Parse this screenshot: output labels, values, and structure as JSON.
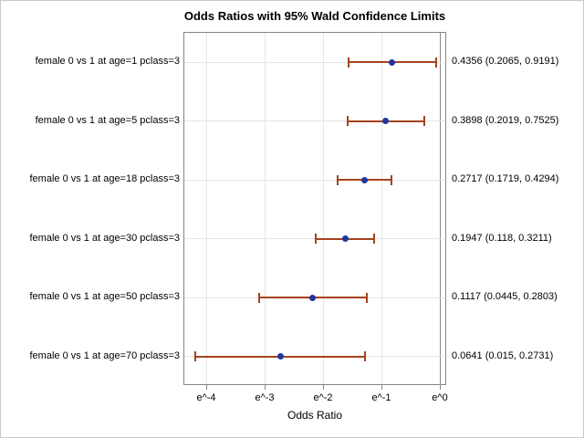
{
  "title": "Odds Ratios with 95% Wald Confidence Limits",
  "chart_data": {
    "type": "scatter",
    "subtype": "forest-plot-dot-with-error-bars",
    "title": "Odds Ratios with 95% Wald Confidence Limits",
    "xlabel": "Odds Ratio",
    "x_scale": "log-e",
    "xlim_exponent": [
      -4.39,
      0.11
    ],
    "grid": true,
    "x_ticks": [
      {
        "label": "e^-4",
        "exponent": -4
      },
      {
        "label": "e^-3",
        "exponent": -3
      },
      {
        "label": "e^-2",
        "exponent": -2
      },
      {
        "label": "e^-1",
        "exponent": -1
      },
      {
        "label": "e^0",
        "exponent": 0
      }
    ],
    "rows": [
      {
        "label": "female 0 vs 1 at age=1 pclass=3",
        "odds_ratio": 0.4356,
        "lower": 0.2065,
        "upper": 0.9191,
        "value_text": "0.4356 (0.2065, 0.9191)"
      },
      {
        "label": "female 0 vs 1 at age=5 pclass=3",
        "odds_ratio": 0.3898,
        "lower": 0.2019,
        "upper": 0.7525,
        "value_text": "0.3898 (0.2019, 0.7525)"
      },
      {
        "label": "female 0 vs 1 at age=18 pclass=3",
        "odds_ratio": 0.2717,
        "lower": 0.1719,
        "upper": 0.4294,
        "value_text": "0.2717 (0.1719, 0.4294)"
      },
      {
        "label": "female 0 vs 1 at age=30 pclass=3",
        "odds_ratio": 0.1947,
        "lower": 0.118,
        "upper": 0.3211,
        "value_text": "0.1947 (0.118, 0.3211)"
      },
      {
        "label": "female 0 vs 1 at age=50 pclass=3",
        "odds_ratio": 0.1117,
        "lower": 0.0445,
        "upper": 0.2803,
        "value_text": "0.1117 (0.0445, 0.2803)"
      },
      {
        "label": "female 0 vs 1 at age=70 pclass=3",
        "odds_ratio": 0.0641,
        "lower": 0.015,
        "upper": 0.2731,
        "value_text": "0.0641 (0.015, 0.2731)"
      }
    ],
    "colors": {
      "marker": "#21379e",
      "ci_line": "#a5431e",
      "gridline": "#e6e6e6",
      "frame": "#868686",
      "text": "#000000"
    }
  }
}
